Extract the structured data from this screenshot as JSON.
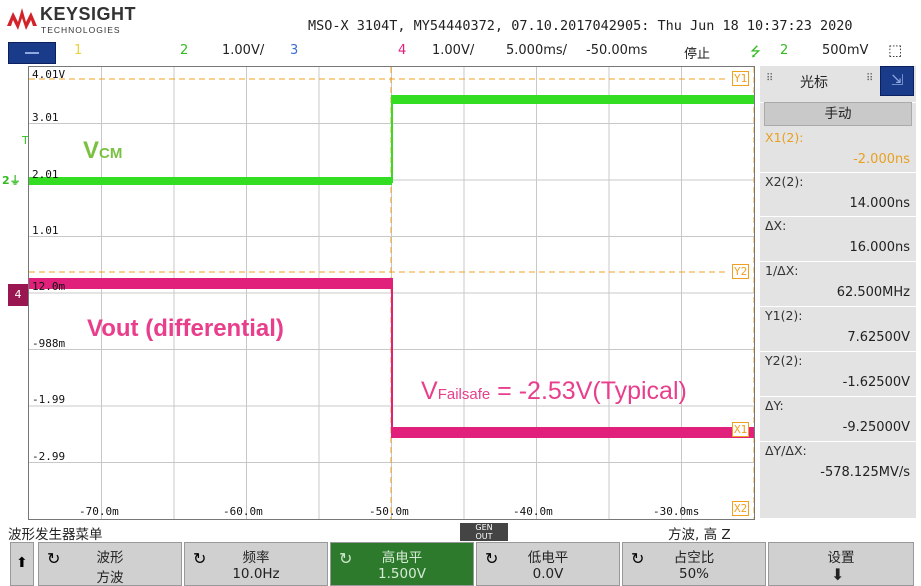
{
  "brand": {
    "name": "KEYSIGHT",
    "sub": "TECHNOLOGIES"
  },
  "device_info": "MSO-X 3104T, MY54440372, 07.10.2017042905: Thu Jun 18 10:37:23 2020",
  "status_bar": {
    "ch1": "1",
    "ch2": "2",
    "ch2_scale": "1.00V/",
    "ch3": "3",
    "ch4": "4",
    "ch4_scale": "1.00V/",
    "timebase": "5.000ms/",
    "delay": "-50.00ms",
    "run_state": "停止",
    "trigger_channel": "2",
    "trigger_level": "500mV"
  },
  "screen": {
    "y_ticks": [
      "4.01V",
      "3.01",
      "2.01",
      "1.01",
      "12.0m",
      "-988m",
      "-1.99",
      "-2.99"
    ],
    "x_ticks": [
      "-70.0m",
      "-60.0m",
      "-50.0m",
      "-40.0m",
      "-30.0ms"
    ],
    "ch2_marker": "2",
    "ch4_marker": "4",
    "trigger_marker": "T",
    "cursor_labels": {
      "y1": "Y1",
      "y2": "Y2",
      "x1": "X1",
      "x2": "X2"
    },
    "annotations": {
      "vcm": "V",
      "vcm_sub": "CM",
      "vout": "Vout (differential)",
      "vfailsafe": "V",
      "vfailsafe_sub": "Failsafe",
      "vfailsafe_value": " = -2.53V(Typical)"
    },
    "colors": {
      "ch2": "#33dd22",
      "ch4": "#e0207a",
      "cursor": "#f0a020",
      "vcm_text": "#7ac142",
      "vout_text": "#e83e8c"
    }
  },
  "side_panel": {
    "title": "光标",
    "mode": "手动",
    "rows": [
      {
        "label": "X1(2):",
        "value": "-2.000ns",
        "highlight": true
      },
      {
        "label": "X2(2):",
        "value": "14.000ns",
        "highlight": false
      },
      {
        "label": "ΔX:",
        "value": "16.000ns",
        "highlight": false
      },
      {
        "label": "1/ΔX:",
        "value": "62.500MHz",
        "highlight": false
      },
      {
        "label": "Y1(2):",
        "value": "7.62500V",
        "highlight": false
      },
      {
        "label": "Y2(2):",
        "value": "-1.62500V",
        "highlight": false
      },
      {
        "label": "ΔY:",
        "value": "-9.25000V",
        "highlight": false
      },
      {
        "label": "ΔY/ΔX:",
        "value": "-578.125MV/s",
        "highlight": false
      }
    ]
  },
  "softkey_bar": {
    "title": "波形发生器菜单",
    "gen_badge_top": "GEN",
    "gen_badge_bottom": "OUT",
    "gen_state": "方波, 高 Z"
  },
  "softkeys": [
    {
      "label": "波形",
      "value": "方波"
    },
    {
      "label": "频率",
      "value": "10.0Hz"
    },
    {
      "label": "高电平",
      "value": "1.500V"
    },
    {
      "label": "低电平",
      "value": "0.0V"
    },
    {
      "label": "占空比",
      "value": "50%"
    },
    {
      "label": "设置",
      "value": ""
    }
  ]
}
